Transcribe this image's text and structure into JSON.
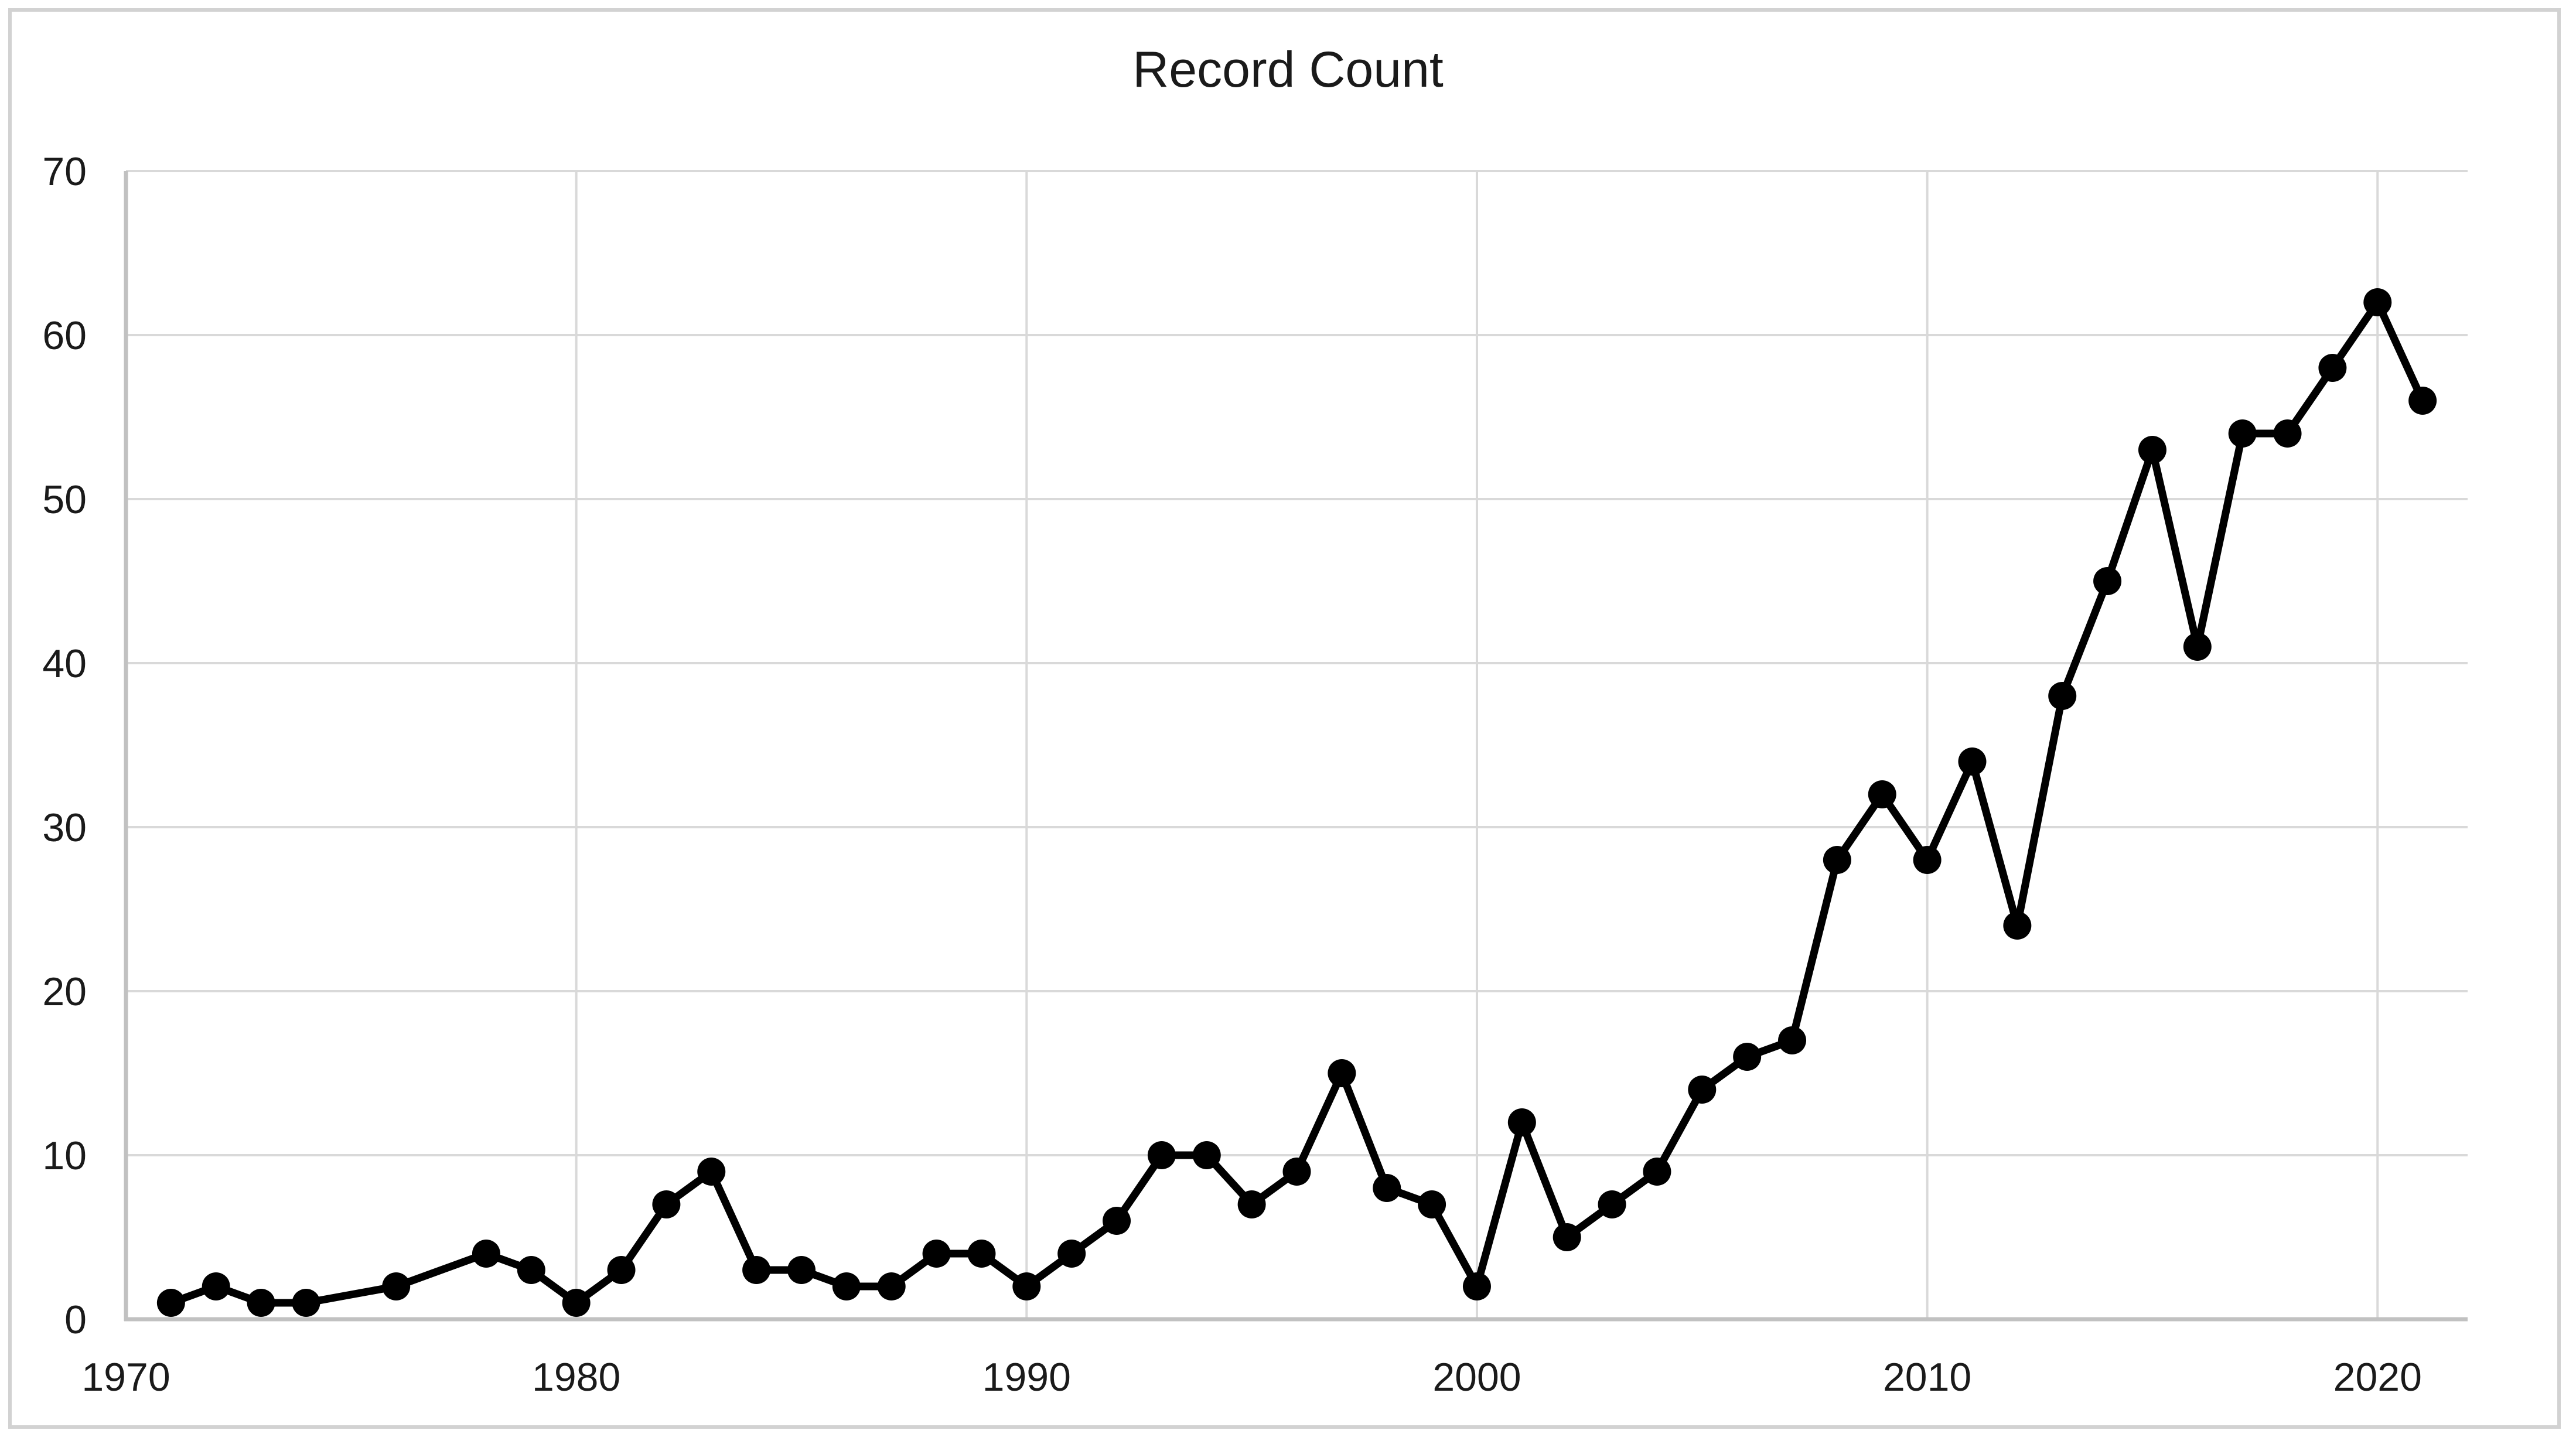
{
  "title": "Record Count",
  "chart_data": {
    "type": "line",
    "title": "Record Count",
    "series_name": "Record Count",
    "x": [
      1971,
      1972,
      1973,
      1974,
      1976,
      1978,
      1979,
      1980,
      1981,
      1982,
      1983,
      1984,
      1985,
      1986,
      1987,
      1988,
      1989,
      1990,
      1991,
      1992,
      1993,
      1994,
      1995,
      1996,
      1997,
      1998,
      1999,
      2000,
      2001,
      2002,
      2003,
      2004,
      2005,
      2006,
      2007,
      2008,
      2009,
      2010,
      2011,
      2012,
      2013,
      2014,
      2015,
      2016,
      2017,
      2018,
      2019,
      2020,
      2021
    ],
    "values": [
      1,
      2,
      1,
      1,
      2,
      4,
      3,
      1,
      3,
      7,
      9,
      3,
      3,
      2,
      2,
      4,
      4,
      2,
      4,
      6,
      10,
      10,
      7,
      9,
      15,
      8,
      7,
      2,
      12,
      5,
      7,
      9,
      14,
      16,
      17,
      28,
      32,
      28,
      34,
      24,
      38,
      45,
      53,
      41,
      54,
      54,
      58,
      62,
      56
    ],
    "missing_years": [
      1975,
      1977
    ],
    "xlabel": "",
    "ylabel": "",
    "xlim": [
      1970,
      2022
    ],
    "ylim": [
      0,
      70
    ],
    "x_ticks": [
      1970,
      1980,
      1990,
      2000,
      2010,
      2020
    ],
    "y_ticks": [
      0,
      10,
      20,
      30,
      40,
      50,
      60,
      70
    ],
    "grid": "on",
    "legend": "none",
    "marker": "circle",
    "line_color": "#000000",
    "marker_color": "#000000",
    "gridline_color": "#d9d9d9",
    "axis_line_color": "#c1c1c1",
    "label_color": "#1a1a1a",
    "border_color": "#d2d2d2",
    "background": "#ffffff"
  }
}
